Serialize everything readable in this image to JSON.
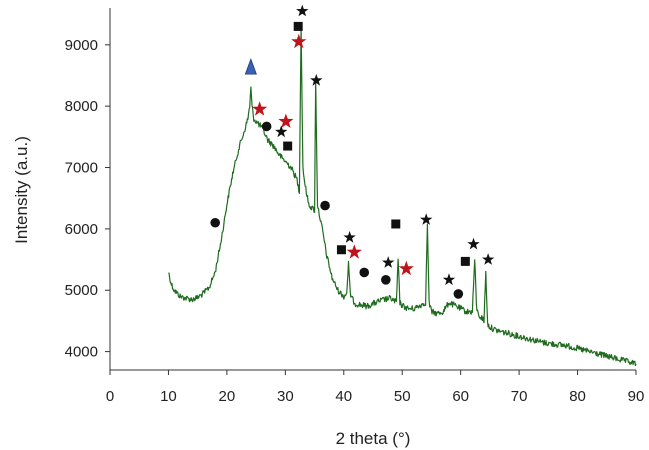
{
  "chart_data": {
    "type": "line",
    "title": "",
    "xlabel": "2 theta (°)",
    "ylabel": "Intensity (a.u.)",
    "xlim": [
      0,
      90
    ],
    "ylim": [
      3700,
      9600
    ],
    "x_ticks": [
      0,
      10,
      20,
      30,
      40,
      50,
      60,
      70,
      80,
      90
    ],
    "y_ticks": [
      4000,
      5000,
      6000,
      7000,
      8000,
      9000
    ],
    "grid": false,
    "legend": "none",
    "series": [
      {
        "color": "#1f6b1f",
        "x": [
          10,
          10.5,
          11,
          12,
          13,
          14,
          15,
          16,
          17,
          18,
          19,
          20,
          21,
          22,
          23,
          23.6,
          23.9,
          24.1,
          24.3,
          24.6,
          25,
          26,
          27,
          28,
          29,
          30,
          31,
          32,
          32.4,
          32.7,
          33,
          33.4,
          34,
          35,
          35.2,
          35.5,
          35.9,
          36.5,
          37,
          38,
          39,
          40,
          40.5,
          40.8,
          41.1,
          41.5,
          42,
          43,
          44,
          45,
          46,
          47,
          48,
          49,
          49.3,
          49.6,
          50,
          51,
          52,
          53,
          54,
          54.3,
          54.6,
          55,
          56,
          57,
          58,
          59,
          60,
          61,
          62,
          62.4,
          62.7,
          63,
          63.6,
          64,
          64.3,
          64.6,
          65,
          66,
          68,
          70,
          72,
          74,
          76,
          78,
          80,
          82,
          84,
          86,
          88,
          90
        ],
        "y": [
          5300,
          5100,
          5000,
          4900,
          4870,
          4850,
          4880,
          4950,
          5050,
          5300,
          5800,
          6400,
          6900,
          7300,
          7600,
          7800,
          8000,
          8300,
          8000,
          7800,
          7750,
          7650,
          7450,
          7350,
          7200,
          7100,
          7000,
          6800,
          6600,
          9300,
          7000,
          6700,
          6400,
          6300,
          8400,
          6400,
          6200,
          5900,
          5600,
          5200,
          5000,
          4900,
          4950,
          5450,
          4950,
          4850,
          4780,
          4760,
          4740,
          4780,
          4820,
          4850,
          4870,
          4800,
          5500,
          4800,
          4750,
          4700,
          4700,
          4750,
          4800,
          6100,
          4800,
          4650,
          4620,
          4650,
          4800,
          4750,
          4700,
          4650,
          4650,
          5500,
          4750,
          4600,
          4550,
          4500,
          5300,
          4450,
          4400,
          4350,
          4300,
          4250,
          4200,
          4150,
          4120,
          4100,
          4050,
          4000,
          3950,
          3900,
          3850,
          3800
        ]
      }
    ],
    "markers": [
      {
        "shape": "triangle",
        "color": "#3a62b5",
        "x": 24.1,
        "y": 8620
      },
      {
        "shape": "star",
        "color": "#c0141c",
        "x": 25.6,
        "y": 7950
      },
      {
        "shape": "star",
        "color": "#c0141c",
        "x": 30.1,
        "y": 7750
      },
      {
        "shape": "star",
        "color": "#c0141c",
        "x": 32.3,
        "y": 9050
      },
      {
        "shape": "star",
        "color": "#c0141c",
        "x": 41.8,
        "y": 5620
      },
      {
        "shape": "star",
        "color": "#c0141c",
        "x": 50.7,
        "y": 5350
      },
      {
        "shape": "star",
        "color": "#111111",
        "x": 29.3,
        "y": 7580
      },
      {
        "shape": "star",
        "color": "#111111",
        "x": 32.9,
        "y": 9550
      },
      {
        "shape": "star",
        "color": "#111111",
        "x": 35.3,
        "y": 8420
      },
      {
        "shape": "star",
        "color": "#111111",
        "x": 41.0,
        "y": 5860
      },
      {
        "shape": "star",
        "color": "#111111",
        "x": 47.6,
        "y": 5450
      },
      {
        "shape": "star",
        "color": "#111111",
        "x": 54.1,
        "y": 6150
      },
      {
        "shape": "star",
        "color": "#111111",
        "x": 58.0,
        "y": 5170
      },
      {
        "shape": "star",
        "color": "#111111",
        "x": 62.2,
        "y": 5750
      },
      {
        "shape": "star",
        "color": "#111111",
        "x": 64.7,
        "y": 5500
      },
      {
        "shape": "square",
        "color": "#111111",
        "x": 32.2,
        "y": 9300
      },
      {
        "shape": "square",
        "color": "#111111",
        "x": 30.4,
        "y": 7350
      },
      {
        "shape": "square",
        "color": "#111111",
        "x": 39.6,
        "y": 5660
      },
      {
        "shape": "square",
        "color": "#111111",
        "x": 48.9,
        "y": 6080
      },
      {
        "shape": "square",
        "color": "#111111",
        "x": 60.8,
        "y": 5470
      },
      {
        "shape": "circle",
        "color": "#111111",
        "x": 18.0,
        "y": 6100
      },
      {
        "shape": "circle",
        "color": "#111111",
        "x": 26.8,
        "y": 7670
      },
      {
        "shape": "circle",
        "color": "#111111",
        "x": 36.8,
        "y": 6380
      },
      {
        "shape": "circle",
        "color": "#111111",
        "x": 43.5,
        "y": 5290
      },
      {
        "shape": "circle",
        "color": "#111111",
        "x": 47.2,
        "y": 5170
      },
      {
        "shape": "circle",
        "color": "#111111",
        "x": 59.6,
        "y": 4940
      }
    ]
  }
}
